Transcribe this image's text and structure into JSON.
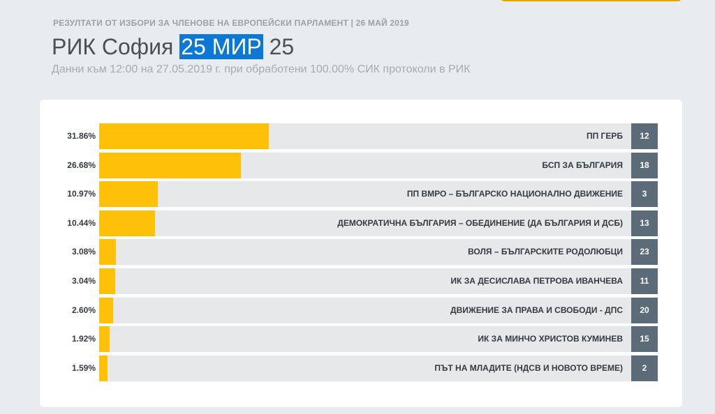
{
  "header": {
    "supertitle": "РЕЗУЛТАТИ ОТ ИЗБОРИ ЗА ЧЛЕНОВЕ НА ЕВРОПЕЙСКИ ПАРЛАМЕНТ | 26 МАЙ 2019",
    "title_prefix": "РИК София",
    "title_highlight": "25 МИР",
    "title_suffix": "25",
    "subtitle": "Данни към 12:00 на 27.05.2019 г. при обработени 100.00% СИК протоколи в РИК"
  },
  "colors": {
    "bar": "#ffc107",
    "track": "#e6e8ea",
    "badge": "#5c6b78",
    "highlight": "#0a78d4"
  },
  "chart_data": {
    "type": "bar",
    "orientation": "horizontal",
    "xlim": [
      0,
      100
    ],
    "rows": [
      {
        "pct_label": "31.86%",
        "value": 31.86,
        "name": "ПП ГЕРБ",
        "number": "12"
      },
      {
        "pct_label": "26.68%",
        "value": 26.68,
        "name": "БСП ЗА БЪЛГАРИЯ",
        "number": "18"
      },
      {
        "pct_label": "10.97%",
        "value": 10.97,
        "name": "ПП ВМРО – БЪЛГАРСКО НАЦИОНАЛНО ДВИЖЕНИЕ",
        "number": "3"
      },
      {
        "pct_label": "10.44%",
        "value": 10.44,
        "name": "ДЕМОКРАТИЧНА БЪЛГАРИЯ – ОБЕДИНЕНИЕ (ДА БЪЛГАРИЯ И ДСБ)",
        "number": "13"
      },
      {
        "pct_label": "3.08%",
        "value": 3.08,
        "name": "ВОЛЯ – БЪЛГАРСКИТЕ РОДОЛЮБЦИ",
        "number": "23"
      },
      {
        "pct_label": "3.04%",
        "value": 3.04,
        "name": "ИК ЗА ДЕСИСЛАВА ПЕТРОВА ИВАНЧЕВА",
        "number": "11"
      },
      {
        "pct_label": "2.60%",
        "value": 2.6,
        "name": "ДВИЖЕНИЕ ЗА ПРАВА И СВОБОДИ - ДПС",
        "number": "20"
      },
      {
        "pct_label": "1.92%",
        "value": 1.92,
        "name": "ИК ЗА МИНЧО ХРИСТОВ КУМИНЕВ",
        "number": "15"
      },
      {
        "pct_label": "1.59%",
        "value": 1.59,
        "name": "ПЪТ НА МЛАДИТЕ (НДСВ И НОВОТО ВРЕМЕ)",
        "number": "2"
      }
    ]
  }
}
